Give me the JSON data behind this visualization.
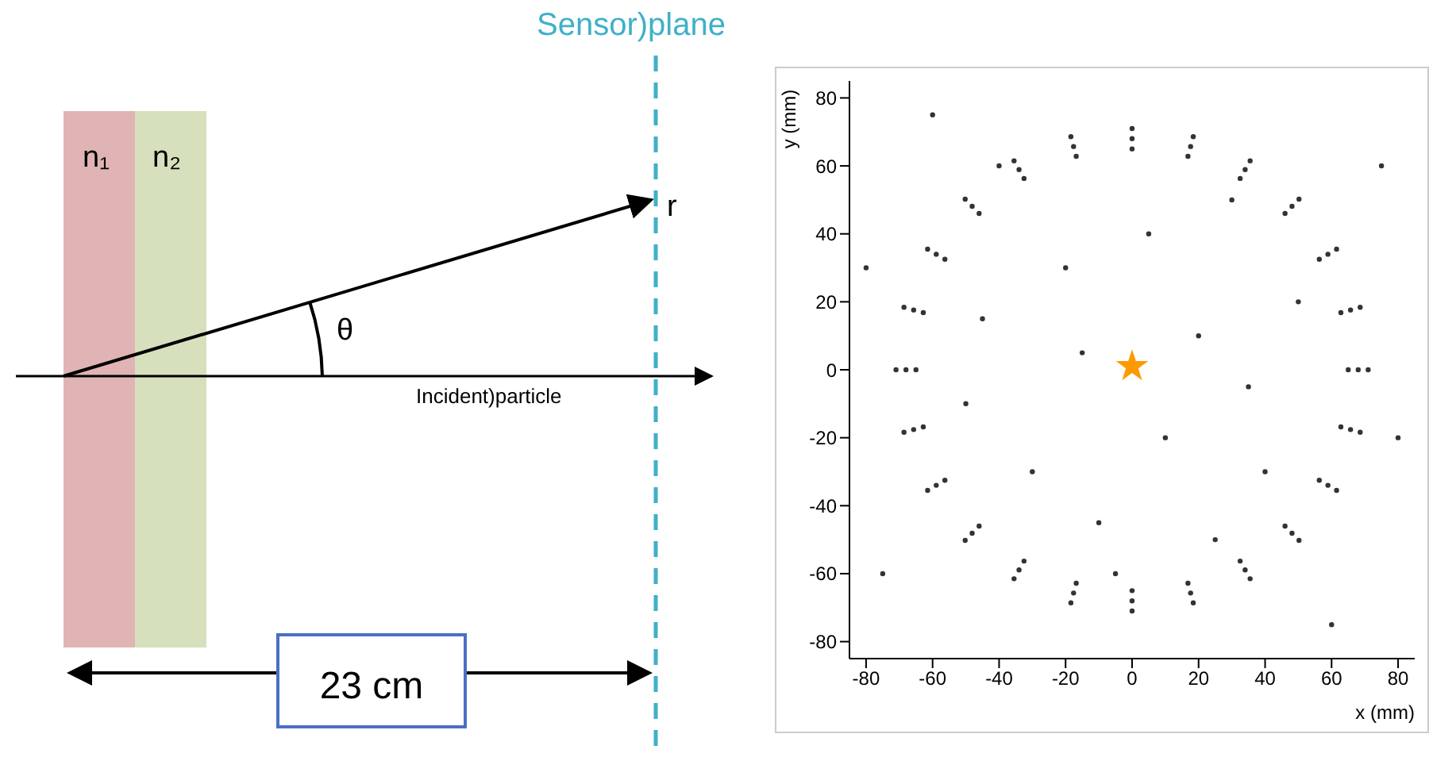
{
  "chart_data": [
    {
      "type": "other",
      "annotations": [
        "Sensor)plane",
        "n₁",
        "n₂",
        "r",
        "θ",
        "Incident)particle",
        "23 cm"
      ]
    },
    {
      "type": "scatter",
      "xlabel": "x (mm)",
      "ylabel": "y (mm)",
      "xlim": [
        -85,
        85
      ],
      "ylim": [
        -85,
        85
      ],
      "xticks": [
        -80,
        -60,
        -40,
        -20,
        0,
        20,
        40,
        60,
        80
      ],
      "yticks": [
        -80,
        -60,
        -40,
        -20,
        0,
        20,
        40,
        60,
        80
      ],
      "series": [
        {
          "color": "#333333",
          "marker": "circle",
          "x": [
            65,
            62.8,
            56.3,
            46,
            32.5,
            16.8,
            0,
            -16.8,
            -32.5,
            -46,
            -56.3,
            -62.8,
            -65,
            -62.8,
            -56.3,
            -46,
            -32.5,
            -16.8,
            0,
            16.8,
            32.5,
            46,
            56.3,
            62.8,
            68,
            65.7,
            58.9,
            48.1,
            34,
            17.6,
            0,
            -17.6,
            -34,
            -48.1,
            -58.9,
            -65.7,
            -68,
            -65.7,
            -58.9,
            -48.1,
            -34,
            -17.6,
            0,
            17.6,
            34,
            48.1,
            58.9,
            65.7,
            71,
            68.6,
            61.5,
            50.2,
            35.5,
            18.4,
            0,
            -18.4,
            -35.5,
            -50.2,
            -61.5,
            -68.6,
            -71,
            -68.6,
            -61.5,
            -50.2,
            -35.5,
            -18.4,
            0,
            18.4,
            35.5,
            50.2,
            61.5,
            68.6,
            -40,
            30,
            -20,
            10,
            40,
            -50,
            20,
            -10,
            50,
            -30,
            80,
            -80,
            75,
            -75,
            60,
            -60,
            5,
            -5,
            35,
            -45,
            25,
            -15
          ],
          "values": [
            0,
            16.8,
            32.5,
            46,
            56.3,
            62.8,
            65,
            62.8,
            56.3,
            46,
            32.5,
            16.8,
            0,
            -16.8,
            -32.5,
            -46,
            -56.3,
            -62.8,
            -65,
            -62.8,
            -56.3,
            -46,
            -32.5,
            -16.8,
            0,
            17.6,
            34,
            48.1,
            58.9,
            65.7,
            68,
            65.7,
            58.9,
            48.1,
            34,
            17.6,
            0,
            -17.6,
            -34,
            -48.1,
            -58.9,
            -65.7,
            -68,
            -65.7,
            -58.9,
            -48.1,
            -34,
            -17.6,
            0,
            18.4,
            35.5,
            50.2,
            61.5,
            68.6,
            71,
            68.6,
            61.5,
            50.2,
            35.5,
            18.4,
            0,
            -18.4,
            -35.5,
            -50.2,
            -61.5,
            -68.6,
            -71,
            -68.6,
            -61.5,
            -50.2,
            -35.5,
            -18.4,
            60,
            50,
            30,
            -20,
            -30,
            -10,
            10,
            -45,
            20,
            -30,
            -20,
            30,
            60,
            -60,
            -75,
            75,
            40,
            -60,
            -5,
            15,
            -50,
            5
          ]
        },
        {
          "color": "#ff9900",
          "marker": "star",
          "x": [
            0
          ],
          "values": [
            1
          ]
        }
      ]
    }
  ]
}
